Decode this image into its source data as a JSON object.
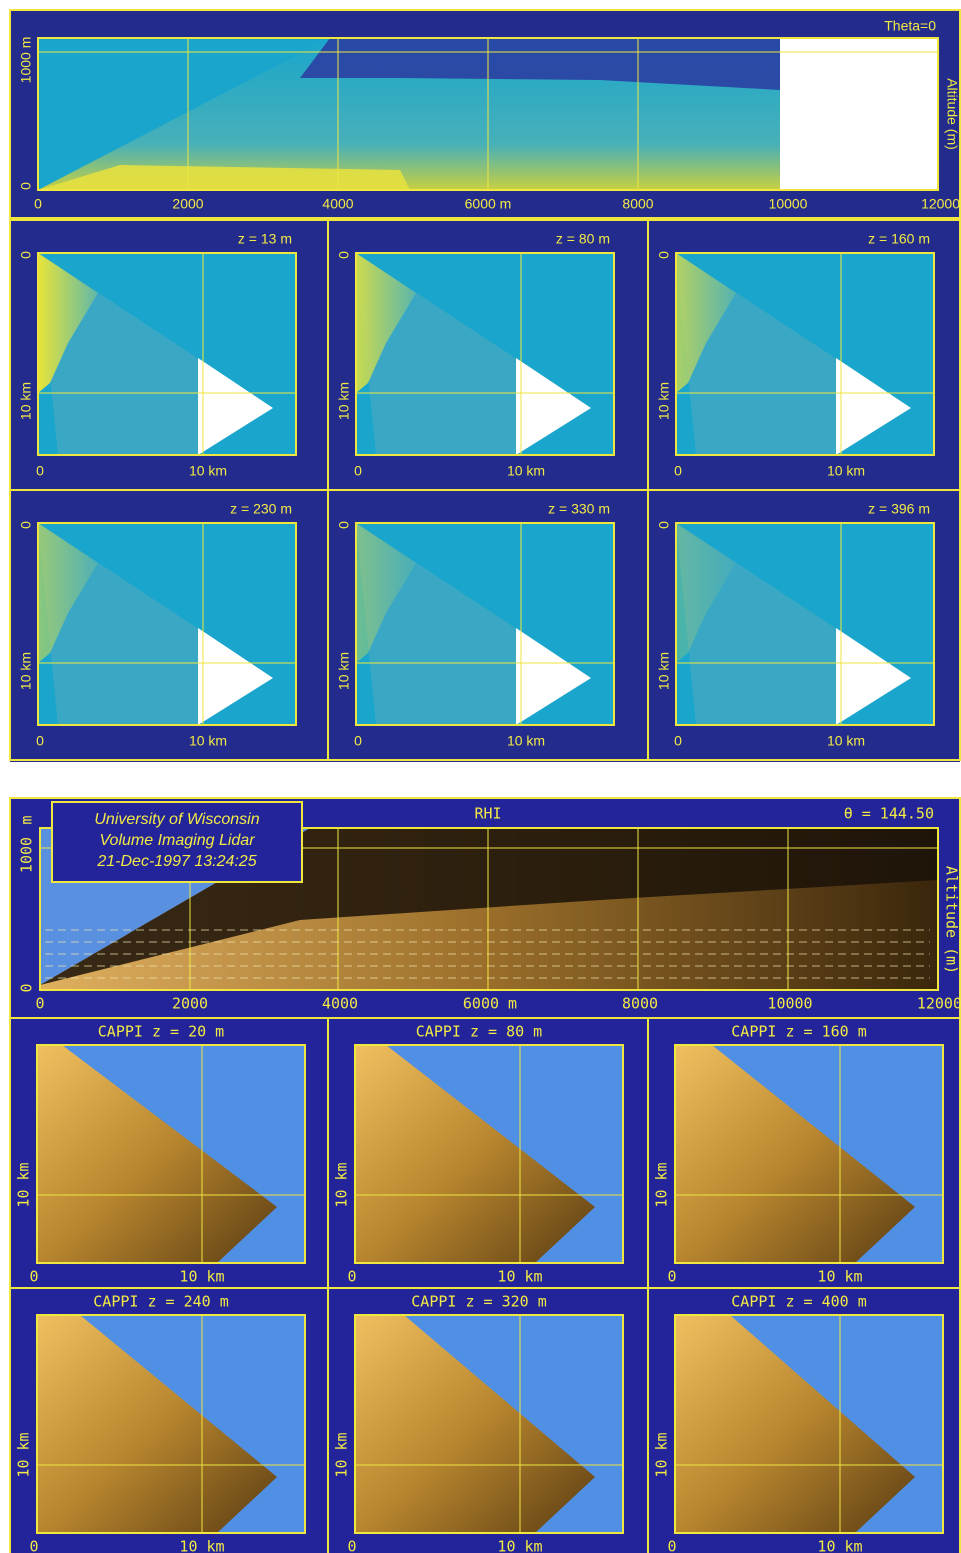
{
  "figures": [
    {
      "rhi": {
        "label": "Theta=0",
        "axis_label": "Altitude (m)",
        "y_labels": [
          "1000 m",
          "0"
        ],
        "x_labels": [
          "0",
          "2000",
          "4000",
          "6000 m",
          "8000",
          "10000",
          "12000"
        ]
      },
      "cappi": [
        {
          "label": "z = 13 m",
          "y_labels": [
            "0",
            "10 km"
          ],
          "x_labels": [
            "0",
            "10 km"
          ]
        },
        {
          "label": "z = 80 m",
          "y_labels": [
            "0",
            "10 km"
          ],
          "x_labels": [
            "0",
            "10 km"
          ]
        },
        {
          "label": "z = 160 m",
          "y_labels": [
            "0",
            "10 km"
          ],
          "x_labels": [
            "0",
            "10 km"
          ]
        },
        {
          "label": "z = 230 m",
          "y_labels": [
            "0",
            "10 km"
          ],
          "x_labels": [
            "0",
            "10 km"
          ]
        },
        {
          "label": "z = 330 m",
          "y_labels": [
            "0",
            "10 km"
          ],
          "x_labels": [
            "0",
            "10 km"
          ]
        },
        {
          "label": "z = 396 m",
          "y_labels": [
            "0",
            "10 km"
          ],
          "x_labels": [
            "0",
            "10 km"
          ]
        }
      ]
    },
    {
      "rhi": {
        "title_box": [
          "University of Wisconsin",
          "Volume Imaging Lidar",
          "21-Dec-1997 13:24:25"
        ],
        "title": "RHI",
        "label": "θ = 144.50",
        "axis_label": "Altitude (m)",
        "y_labels": [
          "m",
          "1000",
          "0"
        ],
        "x_labels": [
          "0",
          "2000",
          "4000",
          "6000 m",
          "8000",
          "10000",
          "12000"
        ]
      },
      "cappi": [
        {
          "label": "CAPPI  z = 20 m",
          "y_labels": [
            "10 km"
          ],
          "x_labels": [
            "0",
            "10 km"
          ]
        },
        {
          "label": "CAPPI  z = 80 m",
          "y_labels": [
            "10 km"
          ],
          "x_labels": [
            "0",
            "10 km"
          ]
        },
        {
          "label": "CAPPI  z = 160 m",
          "y_labels": [
            "10 km"
          ],
          "x_labels": [
            "0",
            "10 km"
          ]
        },
        {
          "label": "CAPPI  z = 240 m",
          "y_labels": [
            "10 km"
          ],
          "x_labels": [
            "0",
            "10 km"
          ]
        },
        {
          "label": "CAPPI  z = 320 m",
          "y_labels": [
            "10 km"
          ],
          "x_labels": [
            "0",
            "10 km"
          ]
        },
        {
          "label": "CAPPI  z = 400 m",
          "y_labels": [
            "10 km"
          ],
          "x_labels": [
            "0",
            "10 km"
          ]
        }
      ]
    }
  ]
}
